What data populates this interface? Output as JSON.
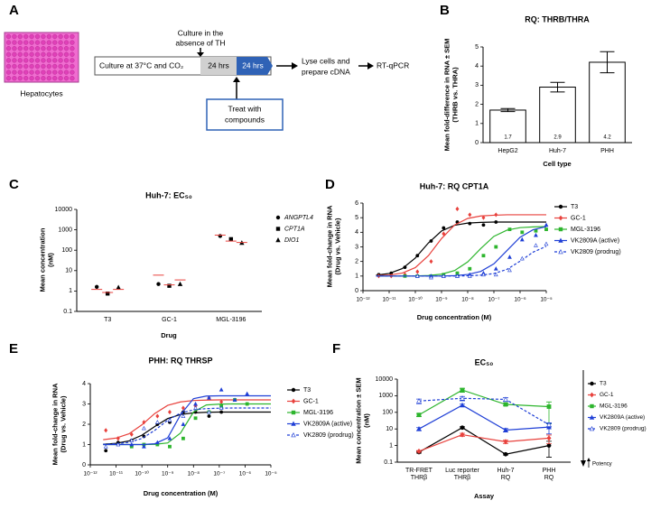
{
  "diagram": {
    "label": "A",
    "cell_label": "Hepatocytes",
    "culture_note": [
      "Culture in the",
      "absence of TH"
    ],
    "culture_step": "Culture at 37°C and CO₂",
    "period_1": "24 hrs",
    "period_2": "24 hrs",
    "treat_note": [
      "Treat with",
      "compounds"
    ],
    "lyse_step": [
      "Lyse cells and",
      "prepare cDNA"
    ],
    "readout": "RT-qPCR"
  },
  "chart_data": [
    {
      "label": "B",
      "type": "bar",
      "title": "RQ: THRB/THRA",
      "ylabel": [
        "Mean fold-difference in RNA ± SEM",
        "(THRB vs. THRA)"
      ],
      "xlabel": "Cell type",
      "categories": [
        "HepG2",
        "Huh-7",
        "PHH"
      ],
      "values": [
        1.7,
        2.9,
        4.2
      ],
      "errors": [
        0.08,
        0.25,
        0.55
      ],
      "color": "#ffffff",
      "ylim": [
        0,
        5
      ],
      "yticks": [
        0,
        1,
        2,
        3,
        4,
        5
      ]
    },
    {
      "label": "C",
      "type": "dot",
      "title": "Huh-7: EC₅₀",
      "ylabel": [
        "Mean concentration",
        "(nM)"
      ],
      "xlabel": "Drug",
      "categories": [
        "T3",
        "GC-1",
        "MGL-3196"
      ],
      "ylog": true,
      "ylim": [
        0.1,
        10000
      ],
      "yticks": [
        0.1,
        1,
        10,
        100,
        1000,
        10000
      ],
      "mean_color": "#e8413c",
      "series": [
        {
          "name": "ANGPTL4",
          "color": "#000000",
          "marker": "circle",
          "values": [
            1.6,
            2.2,
            500
          ],
          "means": [
            1.2,
            6,
            550
          ]
        },
        {
          "name": "CPT1A",
          "color": "#000000",
          "marker": "square",
          "values": [
            0.75,
            1.8,
            350
          ],
          "means": [
            0.85,
            2,
            280
          ]
        },
        {
          "name": "DIO1",
          "color": "#000000",
          "marker": "triangle",
          "values": [
            1.5,
            2.2,
            230
          ],
          "means": [
            1.2,
            3.5,
            240
          ]
        }
      ]
    },
    {
      "label": "D",
      "type": "dose",
      "title": "Huh-7: RQ CPT1A",
      "ylabel": [
        "Mean fold-change in RNA",
        "(Drug vs. Vehicle)"
      ],
      "xlabel": "Drug concentration (M)",
      "xlog": true,
      "xlim": [
        1e-12,
        1e-05
      ],
      "xticks": [
        {
          "value": 1e-12,
          "label": "10⁻¹²"
        },
        {
          "value": 1e-11,
          "label": "10⁻¹¹"
        },
        {
          "value": 1e-10,
          "label": "10⁻¹⁰"
        },
        {
          "value": 1e-09,
          "label": "10⁻⁹"
        },
        {
          "value": 1e-08,
          "label": "10⁻⁸"
        },
        {
          "value": 1e-07,
          "label": "10⁻⁷"
        },
        {
          "value": 1e-06,
          "label": "10⁻⁶"
        },
        {
          "value": 1e-05,
          "label": "10⁻⁵"
        }
      ],
      "ylim": [
        0,
        6
      ],
      "yticks": [
        0,
        1,
        2,
        3,
        4,
        5,
        6
      ],
      "fit_x": [
        3.16e-12,
        1e-11,
        3.16e-11,
        1e-10,
        3.16e-10,
        1e-09,
        3.16e-09,
        1e-08,
        3.16e-08,
        1e-07,
        3.16e-07,
        1e-06,
        3.16e-06,
        1e-05
      ],
      "series": [
        {
          "name": "T3",
          "color": "#000000",
          "marker": "circle",
          "dash": false,
          "x": [
            4e-12,
            1.2e-11,
            4e-11,
            1.2e-10,
            4e-10,
            1.2e-09,
            4e-09,
            1.2e-08,
            4e-08,
            1.2e-07
          ],
          "values": [
            1.1,
            1.2,
            1.6,
            2.4,
            3.4,
            4.3,
            4.7,
            4.6,
            4.5,
            4.7
          ],
          "fit_y": [
            1.06,
            1.18,
            1.51,
            2.24,
            3.27,
            4.09,
            4.48,
            4.63,
            4.68,
            4.7,
            4.7,
            4.7,
            4.7,
            4.7
          ]
        },
        {
          "name": "GC-1",
          "color": "#e8413c",
          "marker": "diamond",
          "dash": false,
          "x": [
            4e-12,
            1.2e-11,
            4e-11,
            1.2e-10,
            4e-10,
            1.2e-09,
            4e-09,
            1.2e-08,
            4e-08,
            1.2e-07
          ],
          "values": [
            1.0,
            1.0,
            1.1,
            1.3,
            2.0,
            3.9,
            5.6,
            5.2,
            5.0,
            5.2
          ],
          "fit_y": [
            1.02,
            1.07,
            1.2,
            1.58,
            2.4,
            3.57,
            4.5,
            4.95,
            5.12,
            5.17,
            5.2,
            5.2,
            5.2,
            5.2
          ]
        },
        {
          "name": "MGL-3196",
          "color": "#2db52d",
          "marker": "square",
          "dash": false,
          "x": [
            4e-11,
            1.2e-10,
            4e-10,
            1.2e-09,
            4e-09,
            1.2e-08,
            4e-08,
            1.2e-07,
            4e-07,
            1.2e-06,
            4e-06,
            1e-05
          ],
          "values": [
            1.0,
            1.0,
            1.0,
            1.1,
            1.2,
            1.5,
            2.4,
            3.0,
            4.2,
            4.0,
            4.1,
            4.2
          ],
          "fit_y": [
            1.0,
            1.0,
            1.0,
            1.01,
            1.04,
            1.13,
            1.38,
            1.97,
            2.89,
            3.72,
            4.15,
            4.32,
            4.37,
            4.39
          ]
        },
        {
          "name": "VK2809A (active)",
          "color": "#1f3fd6",
          "marker": "triangle",
          "dash": false,
          "x": [
            1.2e-10,
            4e-10,
            1.2e-09,
            4e-09,
            1.2e-08,
            4e-08,
            1.2e-07,
            4e-07,
            1.2e-06,
            4e-06,
            1e-05
          ],
          "values": [
            1.0,
            1.0,
            1.0,
            1.0,
            1.1,
            1.2,
            1.5,
            2.3,
            3.5,
            3.8,
            4.5
          ],
          "fit_y": [
            1.0,
            1.0,
            1.0,
            1.0,
            1.0,
            1.0,
            1.03,
            1.11,
            1.32,
            1.84,
            2.75,
            3.66,
            4.18,
            4.39
          ]
        },
        {
          "name": "VK2809 (prodrug)",
          "color": "#1f3fd6",
          "marker": "triangle-open",
          "dash": true,
          "x": [
            1.2e-10,
            4e-10,
            1.2e-09,
            4e-09,
            1.2e-08,
            4e-08,
            1.2e-07,
            4e-07,
            1.2e-06,
            4e-06,
            1e-05
          ],
          "values": [
            1.0,
            0.9,
            1.0,
            1.0,
            1.0,
            1.1,
            1.1,
            1.4,
            2.2,
            3.1,
            3.2
          ],
          "fit_y": [
            1.0,
            1.0,
            1.0,
            1.0,
            1.0,
            1.0,
            1.0,
            1.02,
            1.06,
            1.17,
            1.46,
            2.02,
            2.64,
            3.04
          ]
        }
      ]
    },
    {
      "label": "E",
      "type": "dose",
      "title": "PHH: RQ THRSP",
      "ylabel": [
        "Mean fold-change in RNA",
        "(Drug vs. Vehicle)"
      ],
      "xlabel": "Drug concentration (M)",
      "xlog": true,
      "xlim": [
        1e-12,
        1e-05
      ],
      "xticks": [
        {
          "value": 1e-12,
          "label": "10⁻¹²"
        },
        {
          "value": 1e-11,
          "label": "10⁻¹¹"
        },
        {
          "value": 1e-10,
          "label": "10⁻¹⁰"
        },
        {
          "value": 1e-09,
          "label": "10⁻⁹"
        },
        {
          "value": 1e-08,
          "label": "10⁻⁸"
        },
        {
          "value": 1e-07,
          "label": "10⁻⁷"
        },
        {
          "value": 1e-06,
          "label": "10⁻⁶"
        },
        {
          "value": 1e-05,
          "label": "10⁻⁵"
        }
      ],
      "ylim": [
        0,
        4
      ],
      "yticks": [
        0,
        1,
        2,
        3,
        4
      ],
      "fit_x": [
        3.16e-12,
        1e-11,
        3.16e-11,
        1e-10,
        3.16e-10,
        1e-09,
        3.16e-09,
        1e-08,
        3.16e-08,
        1e-07,
        3.16e-07,
        1e-06,
        3.16e-06,
        1e-05
      ],
      "series": [
        {
          "name": "T3",
          "color": "#000000",
          "marker": "circle",
          "dash": false,
          "x": [
            4e-12,
            1.2e-11,
            4e-11,
            1.2e-10,
            4e-10,
            1.2e-09,
            4e-09,
            1.2e-08,
            4e-08,
            1.2e-07
          ],
          "values": [
            0.7,
            1.1,
            1.2,
            1.4,
            2.0,
            2.1,
            2.6,
            2.6,
            2.4,
            2.6
          ],
          "fit_y": [
            1.02,
            1.06,
            1.18,
            1.46,
            1.89,
            2.28,
            2.48,
            2.56,
            2.59,
            2.6,
            2.6,
            2.6,
            2.6,
            2.6
          ]
        },
        {
          "name": "GC-1",
          "color": "#e8413c",
          "marker": "diamond",
          "dash": false,
          "x": [
            4e-12,
            1.2e-11,
            4e-11,
            1.2e-10,
            4e-10,
            1.2e-09,
            4e-09,
            1.2e-08,
            4e-08,
            1.2e-07
          ],
          "values": [
            1.7,
            1.3,
            1.5,
            2.1,
            2.4,
            2.6,
            2.8,
            2.9,
            3.3,
            3.1
          ],
          "fit_y": [
            1.24,
            1.32,
            1.53,
            1.97,
            2.53,
            2.93,
            3.1,
            3.17,
            3.19,
            3.2,
            3.2,
            3.2,
            3.2,
            3.2
          ]
        },
        {
          "name": "MGL-3196",
          "color": "#2db52d",
          "marker": "square",
          "dash": false,
          "x": [
            4e-11,
            1.2e-10,
            4e-10,
            1.2e-09,
            4e-09,
            1.2e-08,
            4e-08,
            1.2e-07,
            4e-07,
            1.2e-06
          ],
          "values": [
            0.9,
            1.0,
            1.0,
            0.9,
            1.3,
            2.3,
            2.6,
            2.9,
            3.2,
            3.0
          ],
          "fit_y": [
            1.0,
            1.0,
            1.0,
            1.0,
            1.01,
            1.08,
            1.57,
            2.6,
            2.95,
            2.99,
            3.0,
            3.0,
            3.0,
            3.0
          ]
        },
        {
          "name": "VK2809A (active)",
          "color": "#1f3fd6",
          "marker": "triangle",
          "dash": false,
          "x": [
            4e-11,
            1.2e-10,
            4e-10,
            1.2e-09,
            4e-09,
            1.2e-08,
            4e-08,
            1.2e-07,
            4e-07,
            1.2e-06
          ],
          "values": [
            1.0,
            0.9,
            1.1,
            1.3,
            2.0,
            3.0,
            3.3,
            3.7,
            3.2,
            3.5
          ],
          "fit_y": [
            1.0,
            1.0,
            1.0,
            1.0,
            1.04,
            1.33,
            2.47,
            3.26,
            3.39,
            3.4,
            3.4,
            3.4,
            3.4,
            3.4
          ]
        },
        {
          "name": "VK2809 (prodrug)",
          "color": "#1f3fd6",
          "marker": "triangle-open",
          "dash": true,
          "x": [
            4e-12,
            1.2e-11,
            4e-11,
            1.2e-10,
            4e-10,
            1.2e-09,
            4e-09,
            1.2e-08,
            4e-08,
            1.2e-07
          ],
          "values": [
            0.9,
            1.0,
            1.2,
            1.8,
            2.1,
            2.2,
            2.4,
            2.8,
            2.6,
            2.8
          ],
          "fit_y": [
            1.01,
            1.04,
            1.11,
            1.3,
            1.7,
            2.2,
            2.55,
            2.71,
            2.77,
            2.79,
            2.8,
            2.8,
            2.8,
            2.8
          ]
        }
      ]
    },
    {
      "label": "F",
      "type": "line",
      "title": "EC₅₀",
      "ylabel": [
        "Mean concentration ± SEM",
        "(nM)"
      ],
      "xlabel": "Assay",
      "annotation": "Potency",
      "categories": [
        [
          "TR-FRET",
          "THRβ"
        ],
        [
          "Luc reporter",
          "THRβ"
        ],
        [
          "Huh-7",
          "RQ"
        ],
        [
          "PHH",
          "RQ"
        ]
      ],
      "ylog": true,
      "ylim": [
        0.1,
        10000
      ],
      "yticks": [
        0.1,
        1,
        10,
        100,
        1000,
        10000
      ],
      "series": [
        {
          "name": "T3",
          "color": "#000000",
          "marker": "circle",
          "dash": false,
          "values": [
            0.4,
            12,
            0.3,
            1.0
          ],
          "errors": [
            0.05,
            1.5,
            0.03,
            0.8
          ]
        },
        {
          "name": "GC-1",
          "color": "#e8413c",
          "marker": "diamond",
          "dash": false,
          "values": [
            0.45,
            4.5,
            1.7,
            2.8
          ],
          "errors": [
            0.05,
            1,
            0.4,
            1.5
          ]
        },
        {
          "name": "MGL-3196",
          "color": "#2db52d",
          "marker": "square",
          "dash": false,
          "values": [
            70,
            2200,
            300,
            220
          ],
          "errors": [
            15,
            600,
            50,
            200
          ]
        },
        {
          "name": "VK2809A (active)",
          "color": "#1f3fd6",
          "marker": "triangle",
          "dash": false,
          "values": [
            10,
            270,
            8.5,
            13
          ],
          "errors": [
            2,
            40,
            2,
            8
          ]
        },
        {
          "name": "VK2809 (prodrug)",
          "color": "#1f3fd6",
          "marker": "triangle-open",
          "dash": true,
          "values": [
            480,
            700,
            600,
            18
          ],
          "errors": [
            150,
            200,
            150,
            5
          ]
        }
      ]
    }
  ]
}
